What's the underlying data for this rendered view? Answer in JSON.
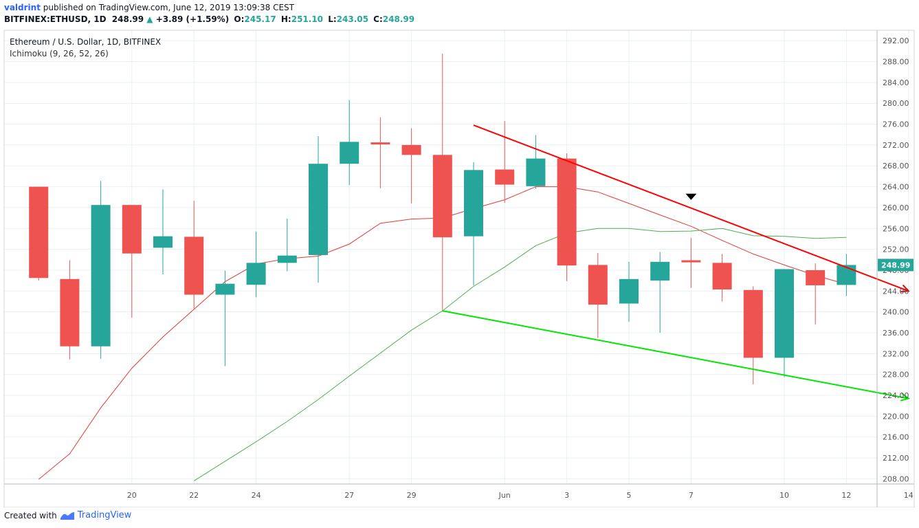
{
  "header": {
    "user": "valdrint",
    "published_text": "published on TradingView.com, June 12, 2019 13:09:38 CEST",
    "symbol": "BITFINEX:ETHUSD, 1D",
    "last": "248.99",
    "change": "+3.89 (+1.59%)",
    "o_label": "O:",
    "o_value": "245.17",
    "h_label": "H:",
    "h_value": "251.10",
    "l_label": "L:",
    "l_value": "243.05",
    "c_label": "C:",
    "c_value": "248.99"
  },
  "legend": {
    "title": "Ethereum / U.S. Dollar, 1D, BITFINEX",
    "indicator": "Ichimoku (9, 26, 52, 26)"
  },
  "footer": {
    "created_with": "Created with",
    "brand": "TradingView"
  },
  "colors": {
    "up": "#26a69a",
    "down": "#ef5350",
    "conversion_line": "#e53935",
    "base_line": "#4caf50",
    "trend_upper": "#ff0000",
    "trend_lower": "#00e600",
    "grid": "#e8f0f2",
    "axis_text": "#555555",
    "price_badge": "#26a69a"
  },
  "chart_data": {
    "type": "candlestick",
    "y_range": [
      207,
      294
    ],
    "x_range_days": [
      "2019-05-16",
      "2019-06-14"
    ],
    "price_ticks": [
      "208.00",
      "212.00",
      "216.00",
      "220.00",
      "224.00",
      "228.00",
      "232.00",
      "236.00",
      "240.00",
      "244.00",
      "248.00",
      "252.00",
      "256.00",
      "260.00",
      "264.00",
      "268.00",
      "272.00",
      "276.00",
      "280.00",
      "284.00",
      "288.00",
      "292.00"
    ],
    "date_ticks": [
      {
        "date": "2019-05-20",
        "label": "20"
      },
      {
        "date": "2019-05-22",
        "label": "22"
      },
      {
        "date": "2019-05-24",
        "label": "24"
      },
      {
        "date": "2019-05-27",
        "label": "27"
      },
      {
        "date": "2019-05-29",
        "label": "29"
      },
      {
        "date": "2019-06-01",
        "label": "Jun"
      },
      {
        "date": "2019-06-03",
        "label": "3"
      },
      {
        "date": "2019-06-05",
        "label": "5"
      },
      {
        "date": "2019-06-07",
        "label": "7"
      },
      {
        "date": "2019-06-10",
        "label": "10"
      },
      {
        "date": "2019-06-12",
        "label": "12"
      },
      {
        "date": "2019-06-14",
        "label": "14"
      }
    ],
    "candles": [
      {
        "date": "2019-05-17",
        "o": 264.0,
        "h": 264.0,
        "l": 246.0,
        "c": 246.5
      },
      {
        "date": "2019-05-18",
        "o": 246.3,
        "h": 249.9,
        "l": 230.9,
        "c": 233.4
      },
      {
        "date": "2019-05-19",
        "o": 233.4,
        "h": 265.1,
        "l": 231.0,
        "c": 260.5
      },
      {
        "date": "2019-05-20",
        "o": 260.5,
        "h": 260.5,
        "l": 238.9,
        "c": 251.2
      },
      {
        "date": "2019-05-21",
        "o": 252.3,
        "h": 263.5,
        "l": 247.2,
        "c": 254.5
      },
      {
        "date": "2019-05-22",
        "o": 254.4,
        "h": 261.3,
        "l": 240.6,
        "c": 243.3
      },
      {
        "date": "2019-05-23",
        "o": 243.3,
        "h": 247.9,
        "l": 229.6,
        "c": 245.4
      },
      {
        "date": "2019-05-24",
        "o": 245.2,
        "h": 255.4,
        "l": 242.8,
        "c": 249.4
      },
      {
        "date": "2019-05-25",
        "o": 249.4,
        "h": 257.9,
        "l": 247.8,
        "c": 250.8
      },
      {
        "date": "2019-05-26",
        "o": 250.9,
        "h": 273.7,
        "l": 245.6,
        "c": 268.4
      },
      {
        "date": "2019-05-27",
        "o": 268.4,
        "h": 280.6,
        "l": 264.3,
        "c": 272.6
      },
      {
        "date": "2019-05-28",
        "o": 272.5,
        "h": 277.3,
        "l": 263.7,
        "c": 272.2
      },
      {
        "date": "2019-05-29",
        "o": 272.0,
        "h": 275.2,
        "l": 260.8,
        "c": 270.1
      },
      {
        "date": "2019-05-30",
        "o": 270.1,
        "h": 289.5,
        "l": 240.3,
        "c": 254.3
      },
      {
        "date": "2019-05-31",
        "o": 254.5,
        "h": 268.7,
        "l": 245.1,
        "c": 267.2
      },
      {
        "date": "2019-06-01",
        "o": 267.3,
        "h": 276.6,
        "l": 260.9,
        "c": 264.4
      },
      {
        "date": "2019-06-02",
        "o": 264.1,
        "h": 273.9,
        "l": 263.6,
        "c": 269.4
      },
      {
        "date": "2019-06-03",
        "o": 269.4,
        "h": 270.4,
        "l": 245.9,
        "c": 248.9
      },
      {
        "date": "2019-06-04",
        "o": 249.0,
        "h": 251.3,
        "l": 235.0,
        "c": 241.4
      },
      {
        "date": "2019-06-05",
        "o": 241.6,
        "h": 249.6,
        "l": 238.1,
        "c": 246.3
      },
      {
        "date": "2019-06-06",
        "o": 246.0,
        "h": 251.5,
        "l": 236.0,
        "c": 249.6
      },
      {
        "date": "2019-06-07",
        "o": 249.9,
        "h": 254.2,
        "l": 244.6,
        "c": 249.5
      },
      {
        "date": "2019-06-08",
        "o": 249.4,
        "h": 251.1,
        "l": 242.0,
        "c": 244.3
      },
      {
        "date": "2019-06-09",
        "o": 244.2,
        "h": 244.9,
        "l": 226.1,
        "c": 231.2
      },
      {
        "date": "2019-06-10",
        "o": 231.2,
        "h": 248.2,
        "l": 227.5,
        "c": 248.2
      },
      {
        "date": "2019-06-11",
        "o": 248.0,
        "h": 249.3,
        "l": 237.6,
        "c": 245.1
      },
      {
        "date": "2019-06-12",
        "o": 245.17,
        "h": 251.1,
        "l": 243.05,
        "c": 248.99
      }
    ],
    "conversion_line": [
      [
        "2019-05-17",
        207.9
      ],
      [
        "2019-05-18",
        212.8
      ],
      [
        "2019-05-19",
        221.6
      ],
      [
        "2019-05-20",
        229.2
      ],
      [
        "2019-05-21",
        235.2
      ],
      [
        "2019-05-22",
        240.5
      ],
      [
        "2019-05-23",
        245.8
      ],
      [
        "2019-05-24",
        249.2
      ],
      [
        "2019-05-25",
        250.2
      ],
      [
        "2019-05-26",
        250.7
      ],
      [
        "2019-05-27",
        253.0
      ],
      [
        "2019-05-28",
        257.0
      ],
      [
        "2019-05-29",
        257.8
      ],
      [
        "2019-05-30",
        258.0
      ],
      [
        "2019-05-31",
        259.8
      ],
      [
        "2019-06-01",
        261.5
      ],
      [
        "2019-06-02",
        264.0
      ],
      [
        "2019-06-03",
        264.0
      ],
      [
        "2019-06-04",
        263.0
      ],
      [
        "2019-06-05",
        260.8
      ],
      [
        "2019-06-06",
        258.6
      ],
      [
        "2019-06-07",
        256.4
      ],
      [
        "2019-06-08",
        253.7
      ],
      [
        "2019-06-09",
        251.1
      ],
      [
        "2019-06-10",
        249.0
      ],
      [
        "2019-06-11",
        247.0
      ],
      [
        "2019-06-12",
        245.3
      ]
    ],
    "base_line": [
      [
        "2019-05-22",
        207.6
      ],
      [
        "2019-05-24",
        215.1
      ],
      [
        "2019-05-25",
        219.0
      ],
      [
        "2019-05-26",
        223.2
      ],
      [
        "2019-05-27",
        227.7
      ],
      [
        "2019-05-28",
        232.1
      ],
      [
        "2019-05-29",
        236.5
      ],
      [
        "2019-05-30",
        240.2
      ],
      [
        "2019-05-31",
        244.9
      ],
      [
        "2019-06-01",
        248.6
      ],
      [
        "2019-06-02",
        252.7
      ],
      [
        "2019-06-03",
        255.1
      ],
      [
        "2019-06-04",
        256.0
      ],
      [
        "2019-06-05",
        256.0
      ],
      [
        "2019-06-06",
        255.4
      ],
      [
        "2019-06-07",
        255.5
      ],
      [
        "2019-06-08",
        256.0
      ],
      [
        "2019-06-09",
        254.6
      ],
      [
        "2019-06-10",
        254.5
      ],
      [
        "2019-06-11",
        254.1
      ],
      [
        "2019-06-12",
        254.3
      ]
    ],
    "trendlines": [
      {
        "name": "upper",
        "from": [
          "2019-05-31",
          275.8
        ],
        "to": [
          "2019-06-14",
          244.0
        ],
        "arrow": true
      },
      {
        "name": "lower",
        "from": [
          "2019-05-30",
          240.2
        ],
        "to": [
          "2019-06-14",
          223.4
        ],
        "arrow": true
      }
    ],
    "marker": {
      "date": "2019-06-07",
      "price": 262.0,
      "shape": "triangle-down"
    },
    "last_price_label": "248.99"
  }
}
